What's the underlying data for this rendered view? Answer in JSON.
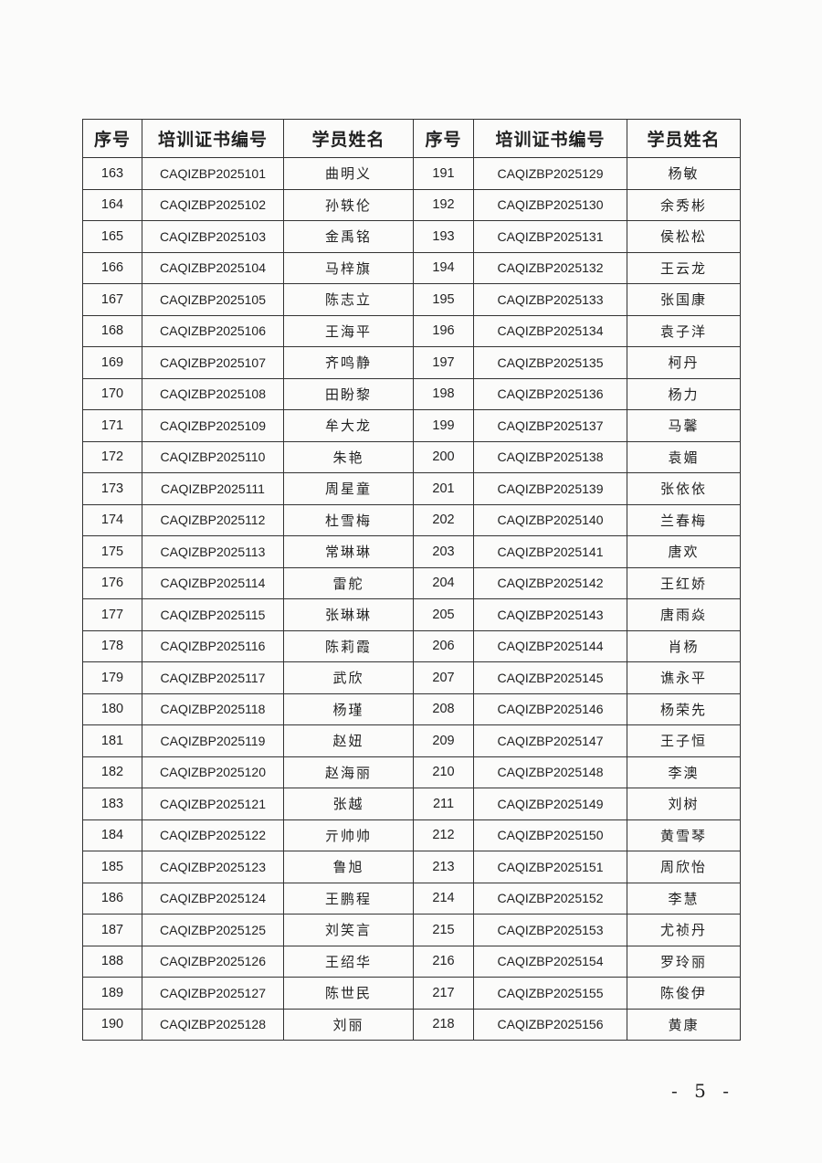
{
  "headers": [
    "序号",
    "培训证书编号",
    "学员姓名",
    "序号",
    "培训证书编号",
    "学员姓名"
  ],
  "rows": [
    [
      "163",
      "CAQIZBP2025101",
      "曲明义",
      "191",
      "CAQIZBP2025129",
      "杨敏"
    ],
    [
      "164",
      "CAQIZBP2025102",
      "孙轶伦",
      "192",
      "CAQIZBP2025130",
      "余秀彬"
    ],
    [
      "165",
      "CAQIZBP2025103",
      "金禹铭",
      "193",
      "CAQIZBP2025131",
      "侯松松"
    ],
    [
      "166",
      "CAQIZBP2025104",
      "马梓旗",
      "194",
      "CAQIZBP2025132",
      "王云龙"
    ],
    [
      "167",
      "CAQIZBP2025105",
      "陈志立",
      "195",
      "CAQIZBP2025133",
      "张国康"
    ],
    [
      "168",
      "CAQIZBP2025106",
      "王海平",
      "196",
      "CAQIZBP2025134",
      "袁子洋"
    ],
    [
      "169",
      "CAQIZBP2025107",
      "齐鸣静",
      "197",
      "CAQIZBP2025135",
      "柯丹"
    ],
    [
      "170",
      "CAQIZBP2025108",
      "田盼黎",
      "198",
      "CAQIZBP2025136",
      "杨力"
    ],
    [
      "171",
      "CAQIZBP2025109",
      "牟大龙",
      "199",
      "CAQIZBP2025137",
      "马馨"
    ],
    [
      "172",
      "CAQIZBP2025110",
      "朱艳",
      "200",
      "CAQIZBP2025138",
      "袁媚"
    ],
    [
      "173",
      "CAQIZBP2025111",
      "周星童",
      "201",
      "CAQIZBP2025139",
      "张依依"
    ],
    [
      "174",
      "CAQIZBP2025112",
      "杜雪梅",
      "202",
      "CAQIZBP2025140",
      "兰春梅"
    ],
    [
      "175",
      "CAQIZBP2025113",
      "常琳琳",
      "203",
      "CAQIZBP2025141",
      "唐欢"
    ],
    [
      "176",
      "CAQIZBP2025114",
      "雷舵",
      "204",
      "CAQIZBP2025142",
      "王红娇"
    ],
    [
      "177",
      "CAQIZBP2025115",
      "张琳琳",
      "205",
      "CAQIZBP2025143",
      "唐雨焱"
    ],
    [
      "178",
      "CAQIZBP2025116",
      "陈莉霞",
      "206",
      "CAQIZBP2025144",
      "肖杨"
    ],
    [
      "179",
      "CAQIZBP2025117",
      "武欣",
      "207",
      "CAQIZBP2025145",
      "谯永平"
    ],
    [
      "180",
      "CAQIZBP2025118",
      "杨瑾",
      "208",
      "CAQIZBP2025146",
      "杨荣先"
    ],
    [
      "181",
      "CAQIZBP2025119",
      "赵妞",
      "209",
      "CAQIZBP2025147",
      "王子恒"
    ],
    [
      "182",
      "CAQIZBP2025120",
      "赵海丽",
      "210",
      "CAQIZBP2025148",
      "李澳"
    ],
    [
      "183",
      "CAQIZBP2025121",
      "张越",
      "211",
      "CAQIZBP2025149",
      "刘树"
    ],
    [
      "184",
      "CAQIZBP2025122",
      "亓帅帅",
      "212",
      "CAQIZBP2025150",
      "黄雪琴"
    ],
    [
      "185",
      "CAQIZBP2025123",
      "鲁旭",
      "213",
      "CAQIZBP2025151",
      "周欣怡"
    ],
    [
      "186",
      "CAQIZBP2025124",
      "王鹏程",
      "214",
      "CAQIZBP2025152",
      "李慧"
    ],
    [
      "187",
      "CAQIZBP2025125",
      "刘笑言",
      "215",
      "CAQIZBP2025153",
      "尤祯丹"
    ],
    [
      "188",
      "CAQIZBP2025126",
      "王绍华",
      "216",
      "CAQIZBP2025154",
      "罗玲丽"
    ],
    [
      "189",
      "CAQIZBP2025127",
      "陈世民",
      "217",
      "CAQIZBP2025155",
      "陈俊伊"
    ],
    [
      "190",
      "CAQIZBP2025128",
      "刘丽",
      "218",
      "CAQIZBP2025156",
      "黄康"
    ]
  ],
  "page_number": "- 5 -"
}
